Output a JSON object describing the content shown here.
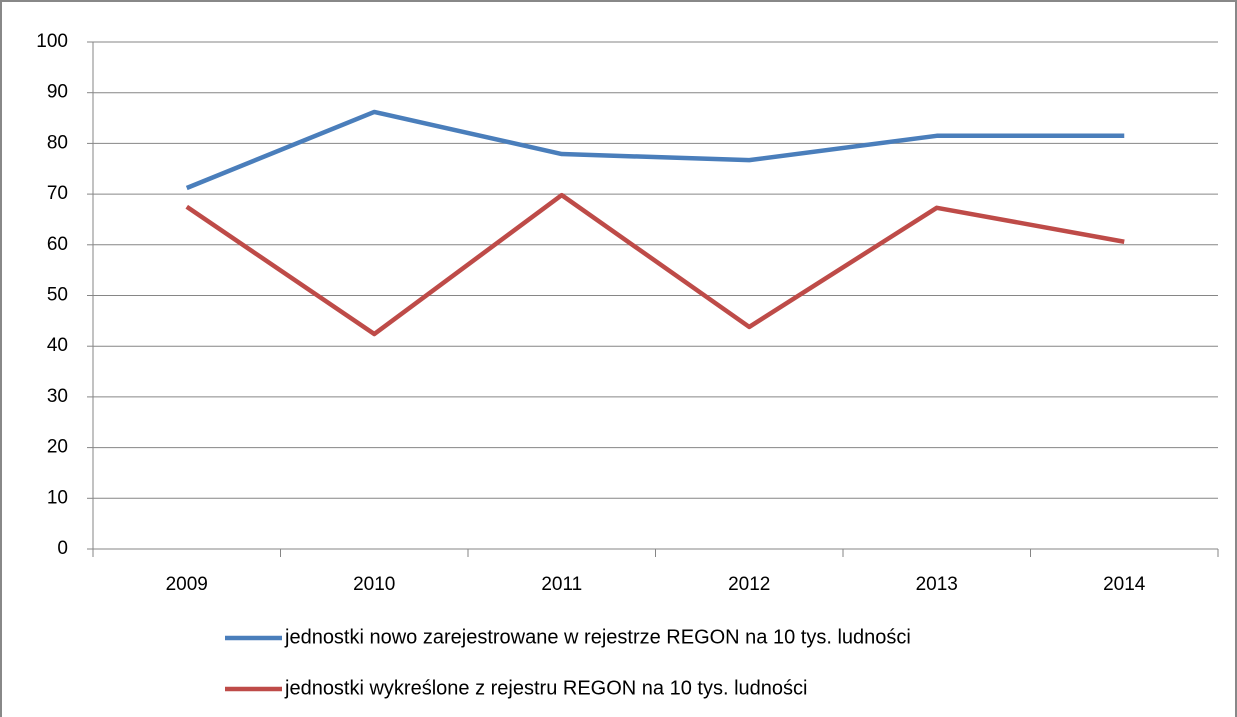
{
  "chart_data": {
    "type": "line",
    "categories": [
      "2009",
      "2010",
      "2011",
      "2012",
      "2013",
      "2014"
    ],
    "series": [
      {
        "name": "jednostki nowo zarejestrowane w rejestrze REGON na 10 tys. ludności",
        "color": "#4a7ebb",
        "values": [
          71.2,
          86.2,
          77.9,
          76.7,
          81.5,
          81.5
        ]
      },
      {
        "name": "jednostki wykreślone z rejestru REGON na 10 tys. ludności",
        "color": "#be4b48",
        "values": [
          67.5,
          42.4,
          69.8,
          43.8,
          67.3,
          60.6
        ]
      }
    ],
    "ylim": [
      0,
      100
    ],
    "yticks": [
      0,
      10,
      20,
      30,
      40,
      50,
      60,
      70,
      80,
      90,
      100
    ],
    "grid": true,
    "legend": "bottom"
  }
}
